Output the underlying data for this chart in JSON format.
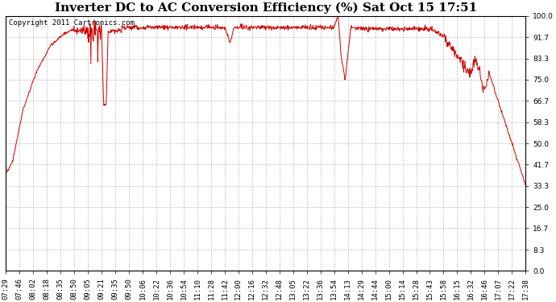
{
  "title": "Inverter DC to AC Conversion Efficiency (%) Sat Oct 15 17:51",
  "copyright": "Copyright 2011 Cartronics.com",
  "line_color": "#cc0000",
  "background_color": "#ffffff",
  "plot_bg_color": "#ffffff",
  "grid_color": "#b0b0b0",
  "ylim": [
    0.0,
    100.0
  ],
  "yticks": [
    0.0,
    8.3,
    16.7,
    25.0,
    33.3,
    41.7,
    50.0,
    58.3,
    66.7,
    75.0,
    83.3,
    91.7,
    100.0
  ],
  "xtick_labels": [
    "07:29",
    "07:46",
    "08:02",
    "08:18",
    "08:35",
    "08:50",
    "09:05",
    "09:21",
    "09:35",
    "09:50",
    "10:06",
    "10:22",
    "10:36",
    "10:54",
    "11:10",
    "11:28",
    "11:42",
    "12:00",
    "12:16",
    "12:32",
    "12:48",
    "13:05",
    "13:22",
    "13:36",
    "13:54",
    "14:13",
    "14:29",
    "14:44",
    "15:00",
    "15:14",
    "15:28",
    "15:43",
    "15:58",
    "16:15",
    "16:32",
    "16:46",
    "17:07",
    "17:22",
    "17:38"
  ],
  "title_fontsize": 11,
  "copyright_fontsize": 6.5,
  "tick_fontsize": 6.5,
  "line_width": 0.7
}
